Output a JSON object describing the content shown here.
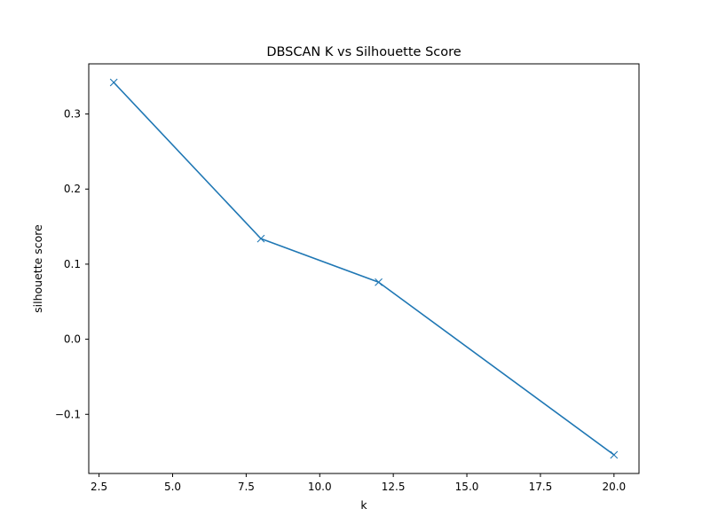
{
  "chart_data": {
    "type": "line",
    "title": "DBSCAN K vs Silhouette Score",
    "xlabel": "k",
    "ylabel": "silhouette score",
    "x": [
      3,
      8,
      12,
      20
    ],
    "series": [
      {
        "values": [
          0.342,
          0.134,
          0.076,
          -0.154
        ],
        "color": "#1f77b4",
        "marker": "x"
      }
    ],
    "xlim": [
      2.15,
      20.85
    ],
    "ylim": [
      -0.1788,
      0.3668
    ],
    "xticks": [
      2.5,
      5.0,
      7.5,
      10.0,
      12.5,
      15.0,
      17.5,
      20.0
    ],
    "xtick_labels": [
      "2.5",
      "5.0",
      "7.5",
      "10.0",
      "12.5",
      "15.0",
      "17.5",
      "20.0"
    ],
    "yticks": [
      -0.1,
      0.0,
      0.1,
      0.2,
      0.3
    ],
    "ytick_labels": [
      "−0.1",
      "0.0",
      "0.1",
      "0.2",
      "0.3"
    ],
    "grid": false,
    "legend": "none"
  }
}
